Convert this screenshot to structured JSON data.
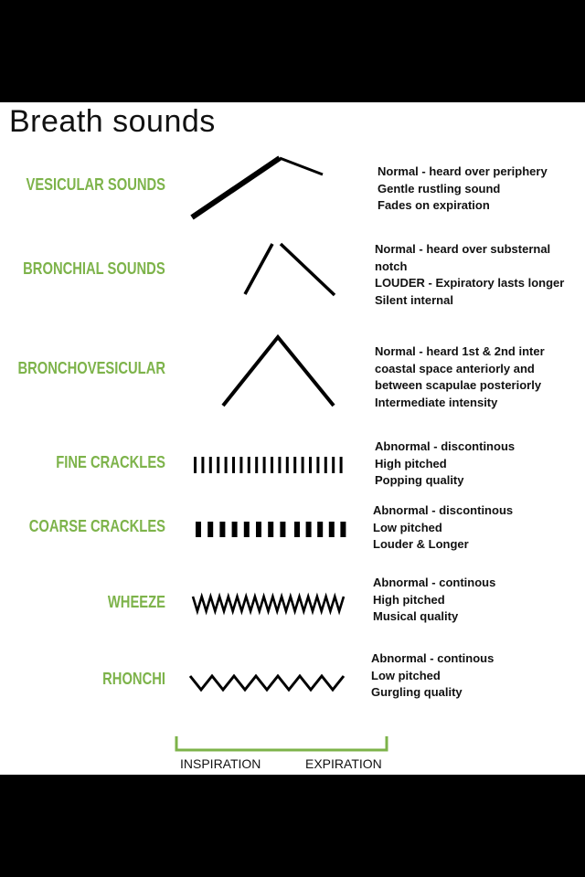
{
  "title": "Breath sounds",
  "rows": [
    {
      "label": "VESICULAR SOUNDS",
      "lines": [
        "Normal - heard over periphery",
        "Gentle rustling sound",
        "Fades on expiration"
      ]
    },
    {
      "label": "BRONCHIAL SOUNDS",
      "lines": [
        "Normal - heard over substernal",
        "notch",
        "LOUDER - Expiratory lasts longer",
        "Silent internal"
      ]
    },
    {
      "label": "BRONCHOVESICULAR",
      "lines": [
        "Normal - heard 1st & 2nd inter",
        "coastal space anteriorly and",
        "between scapulae posteriorly",
        "Intermediate intensity"
      ]
    },
    {
      "label": "FINE CRACKLES",
      "lines": [
        "Abnormal - discontinous",
        "High pitched",
        "Popping quality"
      ]
    },
    {
      "label": "COARSE CRACKLES",
      "lines": [
        "Abnormal - discontinous",
        "Low pitched",
        "Louder & Longer"
      ]
    },
    {
      "label": "WHEEZE",
      "lines": [
        "Abnormal - continous",
        "High pitched",
        "Musical quality"
      ]
    },
    {
      "label": "RHONCHI",
      "lines": [
        "Abnormal - continous",
        "Low pitched",
        "Gurgling quality"
      ]
    }
  ],
  "axis": {
    "inspiration": "INSPIRATION",
    "expiration": "EXPIRATION"
  },
  "colors": {
    "label": "#7db34a",
    "bracket": "#7db34a",
    "line": "#000000"
  }
}
